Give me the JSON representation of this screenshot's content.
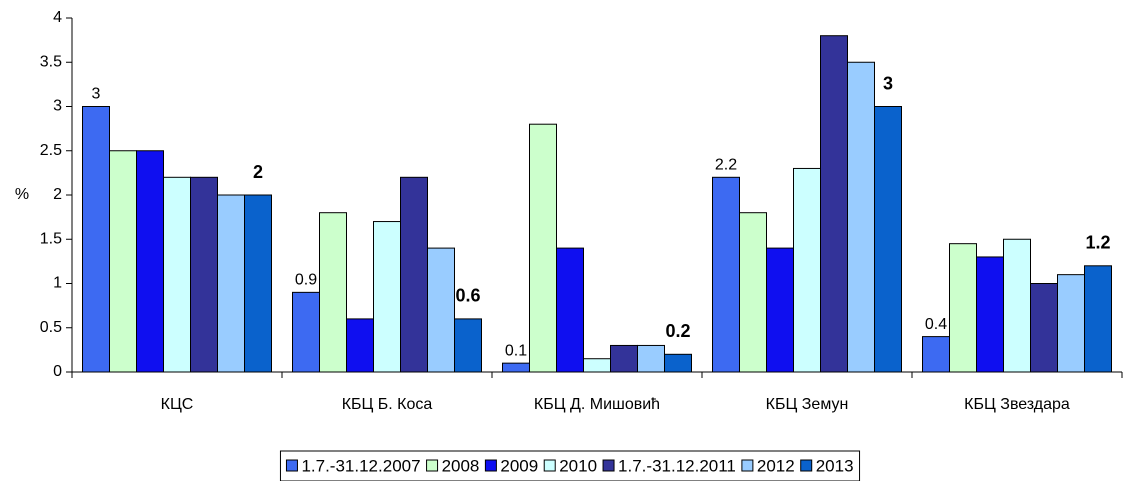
{
  "chart_data": {
    "type": "bar",
    "y_label": "%",
    "categories": [
      "КЦС",
      "КБЦ Б. Коса",
      "КБЦ Д. Мишовић",
      "КБЦ Земун",
      "КБЦ Звездара"
    ],
    "series": [
      {
        "name": "1.7.-31.12.2007",
        "color": "#3d6af2",
        "values": [
          3,
          0.9,
          0.1,
          2.2,
          0.4
        ],
        "show_labels": true
      },
      {
        "name": "2008",
        "color": "#ccffcc",
        "values": [
          2.5,
          1.8,
          2.8,
          1.8,
          1.45
        ]
      },
      {
        "name": "2009",
        "color": "#0f0ff0",
        "values": [
          2.5,
          0.6,
          1.4,
          1.4,
          1.3
        ]
      },
      {
        "name": "2010",
        "color": "#ccffff",
        "values": [
          2.2,
          1.7,
          0.15,
          2.3,
          1.5
        ]
      },
      {
        "name": "1.7.-31.12.2011",
        "color": "#333399",
        "values": [
          2.2,
          2.2,
          0.3,
          3.8,
          1.0
        ]
      },
      {
        "name": "2012",
        "color": "#99ccff",
        "values": [
          2.0,
          1.4,
          0.3,
          3.5,
          1.1
        ]
      },
      {
        "name": "2013",
        "color": "#0a62cc",
        "values": [
          2,
          0.6,
          0.2,
          3,
          1.2
        ],
        "show_labels": true,
        "labels_bold": true
      }
    ],
    "ylim": [
      0,
      4
    ],
    "yticks": [
      0,
      0.5,
      1,
      1.5,
      2,
      2.5,
      3,
      3.5,
      4
    ],
    "legend": "bottom"
  }
}
